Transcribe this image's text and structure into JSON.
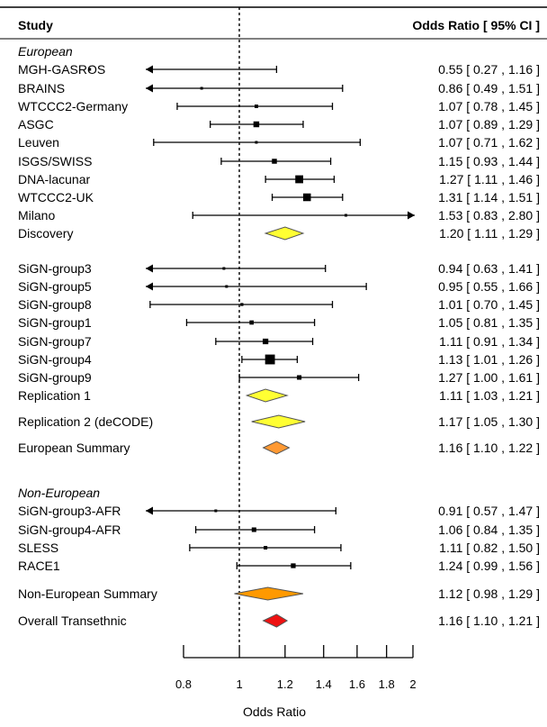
{
  "chart_data": {
    "type": "forest",
    "header_left": "Study",
    "header_right": "Odds Ratio [ 95% CI ]",
    "xlabel": "Odds Ratio",
    "x_scale": "log",
    "xlim": [
      0.8,
      2.0
    ],
    "x_ticks": [
      0.8,
      1,
      1.2,
      1.4,
      1.6,
      1.8,
      2
    ],
    "x_tick_labels": [
      "0.8",
      "1",
      "1.2",
      "1.4",
      "1.6",
      "1.8",
      "2"
    ],
    "reference_line": 1,
    "colors": {
      "discovery_diamond": "#ffff33",
      "replication_diamond": "#ffff33",
      "european_summary": "#ff9933",
      "non_european_summary": "#ff9900",
      "overall_transethnic": "#ee1111"
    },
    "rows": [
      {
        "kind": "group",
        "label": "European"
      },
      {
        "kind": "study",
        "label": "MGH-GASROS",
        "or": 0.55,
        "lo": 0.27,
        "hi": 1.16,
        "ci_text": "0.55 [ 0.27 , 1.16 ]"
      },
      {
        "kind": "study",
        "label": "BRAINS",
        "or": 0.86,
        "lo": 0.49,
        "hi": 1.51,
        "ci_text": "0.86 [ 0.49 , 1.51 ]"
      },
      {
        "kind": "study",
        "label": "WTCCC2-Germany",
        "or": 1.07,
        "lo": 0.78,
        "hi": 1.45,
        "ci_text": "1.07 [ 0.78 , 1.45 ]"
      },
      {
        "kind": "study",
        "label": "ASGC",
        "or": 1.07,
        "lo": 0.89,
        "hi": 1.29,
        "ci_text": "1.07 [ 0.89 , 1.29 ]"
      },
      {
        "kind": "study",
        "label": "Leuven",
        "or": 1.07,
        "lo": 0.71,
        "hi": 1.62,
        "ci_text": "1.07 [ 0.71 , 1.62 ]"
      },
      {
        "kind": "study",
        "label": "ISGS/SWISS",
        "or": 1.15,
        "lo": 0.93,
        "hi": 1.44,
        "ci_text": "1.15 [ 0.93 , 1.44 ]"
      },
      {
        "kind": "study",
        "label": "DNA-lacunar",
        "or": 1.27,
        "lo": 1.11,
        "hi": 1.46,
        "ci_text": "1.27 [ 1.11 , 1.46 ]"
      },
      {
        "kind": "study",
        "label": "WTCCC2-UK",
        "or": 1.31,
        "lo": 1.14,
        "hi": 1.51,
        "ci_text": "1.31 [ 1.14 , 1.51 ]"
      },
      {
        "kind": "study",
        "label": "Milano",
        "or": 1.53,
        "lo": 0.83,
        "hi": 2.8,
        "ci_text": "1.53 [ 0.83 , 2.80 ]"
      },
      {
        "kind": "summary",
        "label": "Discovery",
        "or": 1.2,
        "lo": 1.11,
        "hi": 1.29,
        "ci_text": "1.20 [ 1.11 , 1.29 ]",
        "color": "#ffff33"
      },
      {
        "kind": "study",
        "label": "SiGN-group3",
        "or": 0.94,
        "lo": 0.63,
        "hi": 1.41,
        "ci_text": "0.94 [ 0.63 , 1.41 ]"
      },
      {
        "kind": "study",
        "label": "SiGN-group5",
        "or": 0.95,
        "lo": 0.55,
        "hi": 1.66,
        "ci_text": "0.95 [ 0.55 , 1.66 ]"
      },
      {
        "kind": "study",
        "label": "SiGN-group8",
        "or": 1.01,
        "lo": 0.7,
        "hi": 1.45,
        "ci_text": "1.01 [ 0.70 , 1.45 ]"
      },
      {
        "kind": "study",
        "label": "SiGN-group1",
        "or": 1.05,
        "lo": 0.81,
        "hi": 1.35,
        "ci_text": "1.05 [ 0.81 , 1.35 ]"
      },
      {
        "kind": "study",
        "label": "SiGN-group7",
        "or": 1.11,
        "lo": 0.91,
        "hi": 1.34,
        "ci_text": "1.11 [ 0.91 , 1.34 ]"
      },
      {
        "kind": "study",
        "label": "SiGN-group4",
        "or": 1.13,
        "lo": 1.01,
        "hi": 1.26,
        "ci_text": "1.13 [ 1.01 , 1.26 ]"
      },
      {
        "kind": "study",
        "label": "SiGN-group9",
        "or": 1.27,
        "lo": 1.0,
        "hi": 1.61,
        "ci_text": "1.27 [ 1.00 , 1.61 ]"
      },
      {
        "kind": "summary",
        "label": "Replication 1",
        "or": 1.11,
        "lo": 1.03,
        "hi": 1.21,
        "ci_text": "1.11 [ 1.03 , 1.21 ]",
        "color": "#ffff33"
      },
      {
        "kind": "summary",
        "label": "Replication 2 (deCODE)",
        "or": 1.17,
        "lo": 1.05,
        "hi": 1.3,
        "ci_text": "1.17 [ 1.05 , 1.30 ]",
        "color": "#ffff33"
      },
      {
        "kind": "summary",
        "label": "European Summary",
        "or": 1.16,
        "lo": 1.1,
        "hi": 1.22,
        "ci_text": "1.16 [ 1.10 , 1.22 ]",
        "color": "#ff9933"
      },
      {
        "kind": "group",
        "label": "Non-European"
      },
      {
        "kind": "study",
        "label": "SiGN-group3-AFR",
        "or": 0.91,
        "lo": 0.57,
        "hi": 1.47,
        "ci_text": "0.91 [ 0.57 , 1.47 ]"
      },
      {
        "kind": "study",
        "label": "SiGN-group4-AFR",
        "or": 1.06,
        "lo": 0.84,
        "hi": 1.35,
        "ci_text": "1.06 [ 0.84 , 1.35 ]"
      },
      {
        "kind": "study",
        "label": "SLESS",
        "or": 1.11,
        "lo": 0.82,
        "hi": 1.5,
        "ci_text": "1.11 [ 0.82 , 1.50 ]"
      },
      {
        "kind": "study",
        "label": "RACE1",
        "or": 1.24,
        "lo": 0.99,
        "hi": 1.56,
        "ci_text": "1.24 [ 0.99 , 1.56 ]"
      },
      {
        "kind": "summary",
        "label": "Non-European Summary",
        "or": 1.12,
        "lo": 0.98,
        "hi": 1.29,
        "ci_text": "1.12 [ 0.98 , 1.29 ]",
        "color": "#ff9900"
      },
      {
        "kind": "summary",
        "label": "Overall Transethnic",
        "or": 1.16,
        "lo": 1.1,
        "hi": 1.21,
        "ci_text": "1.16 [ 1.10 , 1.21 ]",
        "color": "#ee1111"
      }
    ]
  }
}
